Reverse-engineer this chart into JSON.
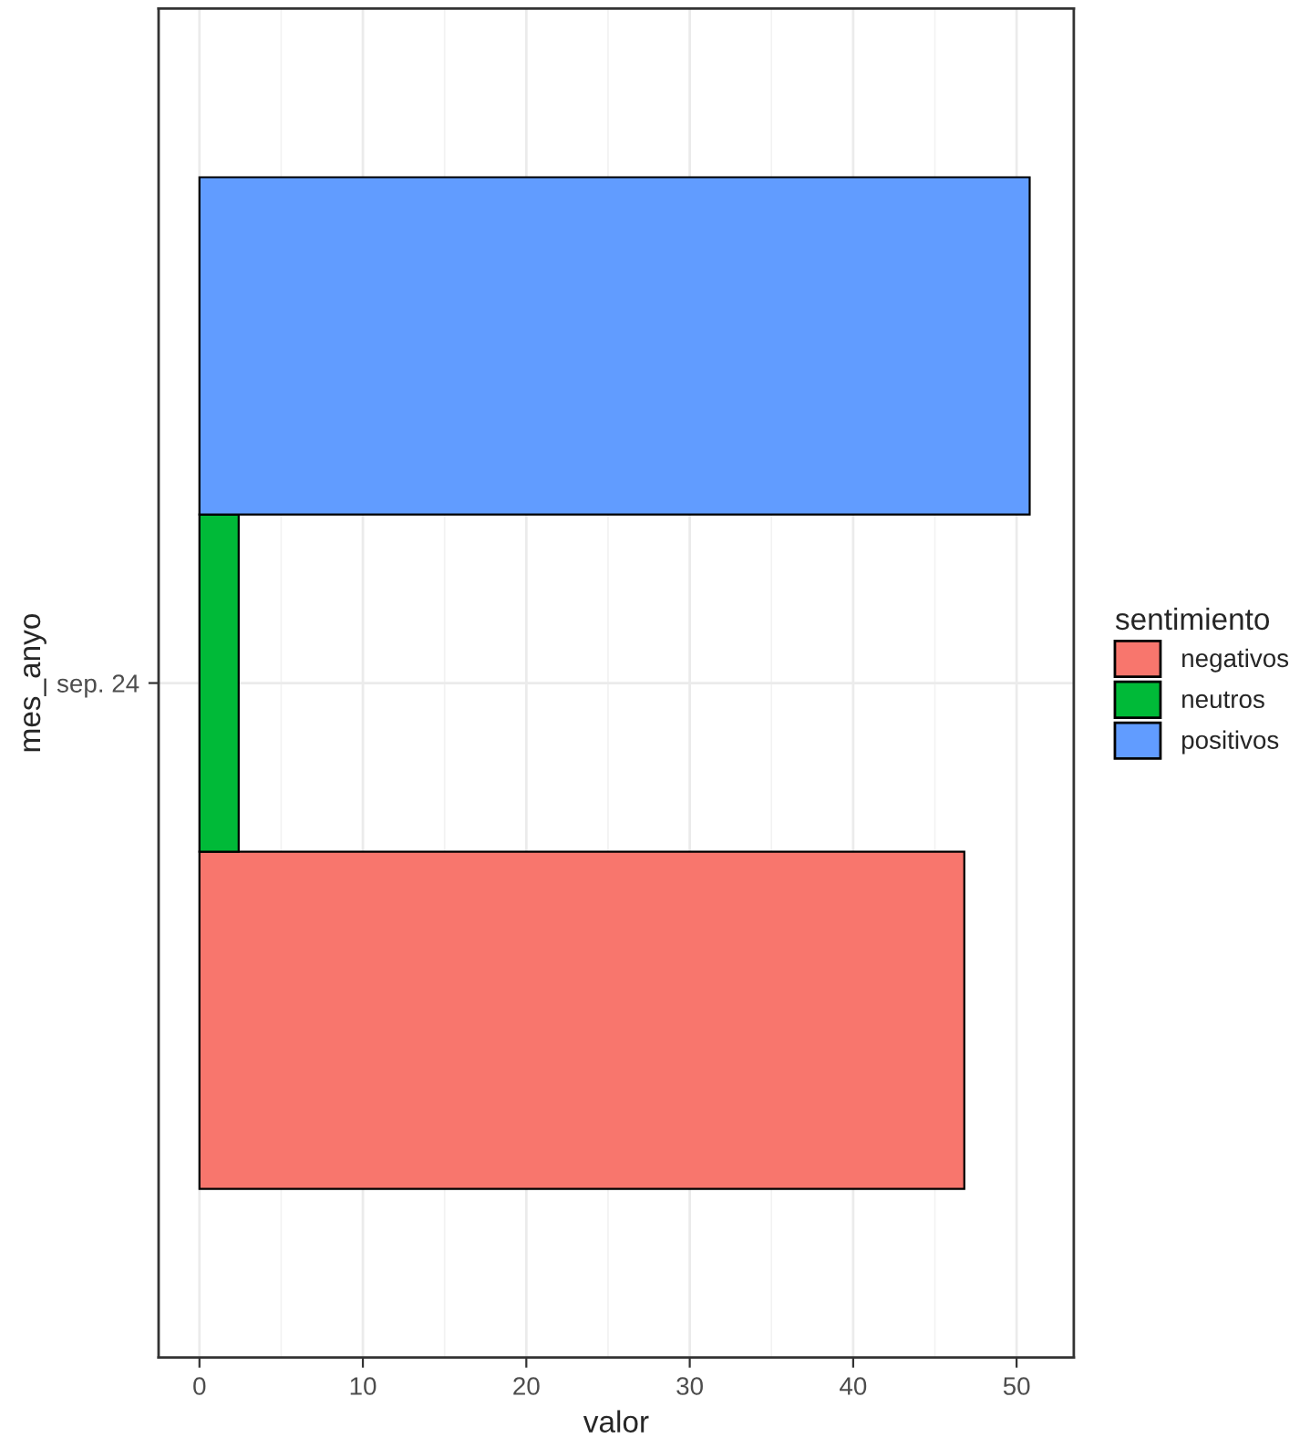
{
  "chart_data": {
    "type": "bar",
    "orientation": "horizontal",
    "xlabel": "valor",
    "ylabel": "mes_anyo",
    "legend_title": "sentimiento",
    "categories": [
      "sep. 24"
    ],
    "series": [
      {
        "name": "negativos",
        "color": "#f8766d",
        "values": [
          46.8
        ]
      },
      {
        "name": "neutros",
        "color": "#00ba38",
        "values": [
          2.4
        ]
      },
      {
        "name": "positivos",
        "color": "#619cff",
        "values": [
          50.8
        ]
      }
    ],
    "xlim": [
      -2.5,
      53.5
    ],
    "xticks": [
      0,
      10,
      20,
      30,
      40,
      50
    ],
    "grid": true,
    "legend": "right"
  }
}
